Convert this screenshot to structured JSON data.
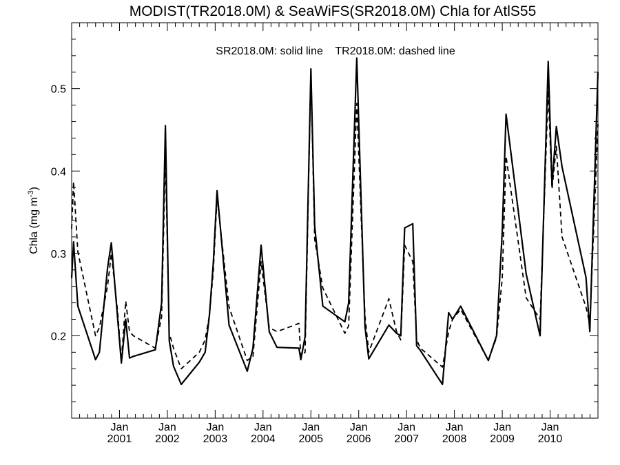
{
  "chart_data": {
    "type": "line",
    "title": "MODIST(TR2018.0M) & SeaWiFS(SR2018.0M)  Chla for AtlS55",
    "annotation": "SR2018.0M: solid line    TR2018.0M: dashed line",
    "ylabel": "Chla (mg m",
    "ylabel_sup": "-3",
    "xlim": [
      2000.0,
      2011.0
    ],
    "ylim": [
      0.1,
      0.58
    ],
    "y_ticks": [
      0.2,
      0.3,
      0.4,
      0.5
    ],
    "y_tick_labels": [
      "0.2",
      "0.3",
      "0.4",
      "0.5"
    ],
    "x_ticks": [
      2001.0,
      2002.0,
      2003.0,
      2004.0,
      2005.0,
      2006.0,
      2007.0,
      2008.0,
      2009.0,
      2010.0
    ],
    "x_tick_month_label": "Jan",
    "x_tick_year_labels": [
      "2001",
      "2002",
      "2003",
      "2004",
      "2005",
      "2006",
      "2007",
      "2008",
      "2009",
      "2010"
    ],
    "grid": false,
    "series": [
      {
        "name": "SR2018.0M",
        "style": "solid",
        "color": "#000000",
        "x": [
          2000.0,
          2000.04,
          2000.13,
          2000.5,
          2000.58,
          2000.75,
          2000.83,
          2000.96,
          2001.04,
          2001.13,
          2001.21,
          2001.29,
          2001.75,
          2001.88,
          2001.96,
          2002.04,
          2002.13,
          2002.29,
          2002.67,
          2002.79,
          2002.88,
          2002.96,
          2003.04,
          2003.29,
          2003.67,
          2003.79,
          2003.96,
          2004.13,
          2004.29,
          2004.75,
          2004.79,
          2004.88,
          2005.0,
          2005.08,
          2005.25,
          2005.71,
          2005.79,
          2005.96,
          2006.13,
          2006.21,
          2006.63,
          2006.79,
          2006.88,
          2006.96,
          2007.13,
          2007.21,
          2007.29,
          2007.75,
          2007.88,
          2007.96,
          2008.13,
          2008.71,
          2008.88,
          2009.0,
          2009.08,
          2009.5,
          2009.79,
          2009.96,
          2010.04,
          2010.13,
          2010.25,
          2010.75,
          2010.83,
          2011.0
        ],
        "y": [
          0.27,
          0.314,
          0.236,
          0.171,
          0.18,
          0.282,
          0.313,
          0.222,
          0.167,
          0.22,
          0.173,
          0.175,
          0.183,
          0.24,
          0.455,
          0.194,
          0.163,
          0.141,
          0.168,
          0.18,
          0.225,
          0.288,
          0.376,
          0.213,
          0.157,
          0.185,
          0.31,
          0.205,
          0.186,
          0.185,
          0.171,
          0.199,
          0.524,
          0.333,
          0.236,
          0.217,
          0.24,
          0.537,
          0.211,
          0.172,
          0.213,
          0.203,
          0.2,
          0.331,
          0.336,
          0.188,
          0.182,
          0.141,
          0.228,
          0.22,
          0.236,
          0.17,
          0.2,
          0.327,
          0.469,
          0.275,
          0.2,
          0.533,
          0.383,
          0.454,
          0.405,
          0.271,
          0.205,
          0.52
        ]
      },
      {
        "name": "TR2018.0M",
        "style": "dashed",
        "color": "#000000",
        "x": [
          2000.0,
          2000.04,
          2000.13,
          2000.5,
          2000.58,
          2000.75,
          2000.83,
          2000.96,
          2001.04,
          2001.13,
          2001.21,
          2001.29,
          2001.75,
          2001.88,
          2001.96,
          2002.04,
          2002.13,
          2002.29,
          2002.67,
          2002.79,
          2002.88,
          2002.96,
          2003.04,
          2003.29,
          2003.67,
          2003.79,
          2003.96,
          2004.13,
          2004.29,
          2004.75,
          2004.79,
          2004.88,
          2005.0,
          2005.08,
          2005.25,
          2005.71,
          2005.79,
          2005.96,
          2006.13,
          2006.21,
          2006.63,
          2006.79,
          2006.88,
          2006.96,
          2007.13,
          2007.21,
          2007.29,
          2007.75,
          2007.88,
          2007.96,
          2008.13,
          2008.71,
          2008.88,
          2009.0,
          2009.08,
          2009.5,
          2009.79,
          2009.96,
          2010.04,
          2010.13,
          2010.25,
          2010.75,
          2010.83,
          2011.0
        ],
        "y": [
          0.33,
          0.387,
          0.302,
          0.2,
          0.21,
          0.26,
          0.3,
          0.23,
          0.17,
          0.242,
          0.205,
          0.2,
          0.185,
          0.223,
          0.42,
          0.203,
          0.185,
          0.16,
          0.18,
          0.195,
          0.225,
          0.278,
          0.368,
          0.235,
          0.17,
          0.175,
          0.29,
          0.21,
          0.205,
          0.215,
          0.175,
          0.18,
          0.52,
          0.317,
          0.258,
          0.203,
          0.212,
          0.482,
          0.224,
          0.18,
          0.245,
          0.205,
          0.195,
          0.31,
          0.29,
          0.195,
          0.185,
          0.162,
          0.205,
          0.22,
          0.232,
          0.17,
          0.198,
          0.27,
          0.418,
          0.246,
          0.22,
          0.498,
          0.378,
          0.43,
          0.32,
          0.235,
          0.214,
          0.457
        ]
      }
    ]
  }
}
